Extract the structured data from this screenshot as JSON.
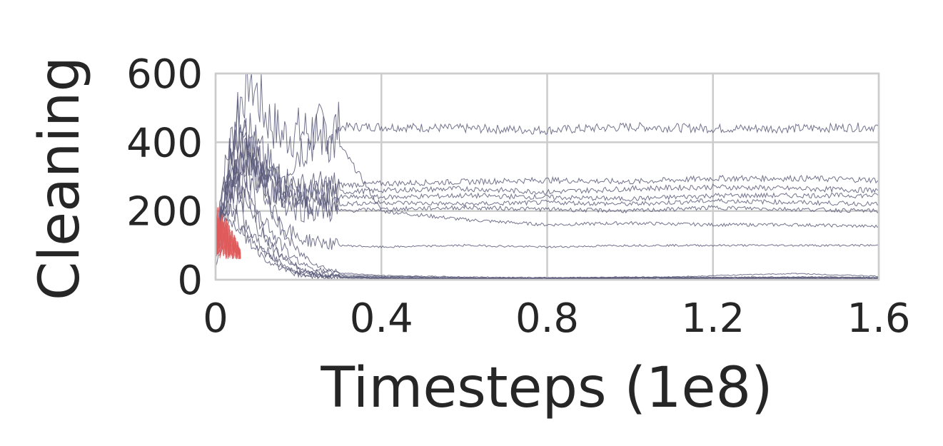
{
  "chart_data": {
    "type": "line",
    "title": "",
    "xlabel": "Timesteps (1e8)",
    "ylabel": "Cleaning",
    "xlim": [
      0,
      1.6
    ],
    "ylim": [
      0,
      600
    ],
    "xticks": [
      "0",
      "0.4",
      "0.8",
      "1.2",
      "1.6"
    ],
    "yticks": [
      "0",
      "200",
      "400",
      "600"
    ],
    "xtick_values": [
      0,
      0.4,
      0.8,
      1.2,
      1.6
    ],
    "ytick_values": [
      0,
      200,
      400,
      600
    ],
    "grid": true,
    "legend": "none",
    "colors": {
      "line": "#5a5a7a",
      "early_noise": "#e05a5a",
      "grid": "#cccccc",
      "text": "#262626"
    },
    "series": [
      {
        "x": [
          0,
          0.02,
          0.05,
          0.08,
          0.12,
          0.16,
          0.2,
          0.3,
          0.4,
          0.6,
          0.8,
          1.0,
          1.2,
          1.4,
          1.6
        ],
        "values": [
          120,
          300,
          480,
          600,
          480,
          420,
          430,
          445,
          445,
          440,
          435,
          445,
          440,
          440,
          445
        ]
      },
      {
        "x": [
          0,
          0.02,
          0.05,
          0.1,
          0.15,
          0.2,
          0.25,
          0.3,
          0.35,
          0.4,
          0.6,
          0.8,
          1.0,
          1.2,
          1.4,
          1.6
        ],
        "values": [
          100,
          250,
          350,
          300,
          280,
          380,
          420,
          390,
          300,
          200,
          175,
          160,
          165,
          160,
          160,
          155
        ]
      },
      {
        "x": [
          0,
          0.03,
          0.06,
          0.1,
          0.15,
          0.2,
          0.3,
          0.4,
          0.6,
          0.8,
          1.0,
          1.2,
          1.4,
          1.6
        ],
        "values": [
          130,
          350,
          500,
          380,
          300,
          265,
          275,
          280,
          285,
          290,
          285,
          295,
          295,
          290
        ]
      },
      {
        "x": [
          0,
          0.03,
          0.06,
          0.1,
          0.15,
          0.2,
          0.3,
          0.4,
          0.6,
          0.8,
          1.0,
          1.2,
          1.4,
          1.6
        ],
        "values": [
          110,
          300,
          420,
          350,
          280,
          250,
          255,
          260,
          265,
          255,
          265,
          270,
          265,
          260
        ]
      },
      {
        "x": [
          0,
          0.03,
          0.07,
          0.1,
          0.15,
          0.2,
          0.3,
          0.4,
          0.6,
          0.8,
          1.0,
          1.2,
          1.4,
          1.6
        ],
        "values": [
          100,
          250,
          400,
          300,
          260,
          245,
          240,
          240,
          245,
          240,
          235,
          245,
          245,
          245
        ]
      },
      {
        "x": [
          0,
          0.03,
          0.07,
          0.12,
          0.17,
          0.2,
          0.3,
          0.4,
          0.6,
          0.8,
          1.0,
          1.2,
          1.4,
          1.6
        ],
        "values": [
          90,
          280,
          380,
          320,
          240,
          225,
          220,
          225,
          220,
          225,
          220,
          230,
          225,
          220
        ]
      },
      {
        "x": [
          0,
          0.03,
          0.08,
          0.12,
          0.17,
          0.2,
          0.3,
          0.4,
          0.6,
          0.8,
          1.0,
          1.2,
          1.4,
          1.6
        ],
        "values": [
          80,
          260,
          360,
          280,
          220,
          205,
          200,
          205,
          210,
          205,
          200,
          210,
          205,
          200
        ]
      },
      {
        "x": [
          0,
          0.03,
          0.08,
          0.12,
          0.16,
          0.2,
          0.3,
          0.4,
          0.6,
          0.8,
          1.0,
          1.2,
          1.4,
          1.6
        ],
        "values": [
          100,
          200,
          330,
          240,
          160,
          120,
          100,
          95,
          100,
          95,
          100,
          100,
          100,
          100
        ]
      },
      {
        "x": [
          0,
          0.04,
          0.08,
          0.12,
          0.16,
          0.2,
          0.25,
          0.3,
          0.4,
          0.6,
          0.8,
          1.0,
          1.2,
          1.4,
          1.6
        ],
        "values": [
          120,
          380,
          420,
          260,
          140,
          80,
          40,
          20,
          12,
          8,
          6,
          8,
          7,
          8,
          6
        ]
      },
      {
        "x": [
          0,
          0.03,
          0.06,
          0.1,
          0.14,
          0.18,
          0.22,
          0.26,
          0.3,
          0.4,
          0.6,
          0.8,
          1.0,
          1.2,
          1.4,
          1.6
        ],
        "values": [
          90,
          300,
          340,
          220,
          130,
          70,
          40,
          25,
          15,
          10,
          6,
          5,
          7,
          6,
          8,
          7
        ]
      },
      {
        "x": [
          0,
          0.02,
          0.05,
          0.09,
          0.13,
          0.17,
          0.21,
          0.26,
          0.3,
          0.4,
          0.6,
          0.8,
          1.0,
          1.2,
          1.4,
          1.6
        ],
        "values": [
          80,
          260,
          300,
          200,
          110,
          60,
          30,
          18,
          10,
          8,
          5,
          5,
          6,
          5,
          6,
          5
        ]
      },
      {
        "x": [
          0,
          0.02,
          0.05,
          0.09,
          0.13,
          0.17,
          0.21,
          0.25,
          0.3,
          0.4,
          0.6,
          0.8,
          1.0,
          1.2,
          1.4,
          1.6
        ],
        "values": [
          70,
          220,
          280,
          170,
          100,
          55,
          28,
          15,
          10,
          6,
          4,
          4,
          5,
          4,
          5,
          4
        ]
      },
      {
        "x": [
          0,
          0.02,
          0.04,
          0.08,
          0.12,
          0.16,
          0.2,
          0.25,
          0.3,
          0.4,
          0.6,
          0.8,
          1.0,
          1.2,
          1.4,
          1.6
        ],
        "values": [
          60,
          180,
          250,
          150,
          90,
          45,
          22,
          12,
          8,
          5,
          3,
          3,
          4,
          12,
          18,
          10
        ]
      },
      {
        "x": [
          0,
          0.02,
          0.04,
          0.08,
          0.12,
          0.16,
          0.2,
          0.25,
          0.3,
          0.4,
          0.6,
          0.8,
          1.0,
          1.2,
          1.4,
          1.6
        ],
        "values": [
          50,
          150,
          210,
          130,
          75,
          40,
          20,
          10,
          6,
          4,
          3,
          2,
          3,
          3,
          4,
          3
        ]
      },
      {
        "x": [
          0,
          0.02,
          0.04,
          0.08,
          0.12,
          0.16,
          0.2,
          0.25,
          0.3,
          0.4,
          0.6,
          0.8,
          1.0,
          1.2,
          1.4,
          1.6
        ],
        "values": [
          40,
          120,
          180,
          110,
          60,
          30,
          15,
          8,
          5,
          3,
          2,
          2,
          2,
          2,
          3,
          2
        ]
      }
    ]
  }
}
